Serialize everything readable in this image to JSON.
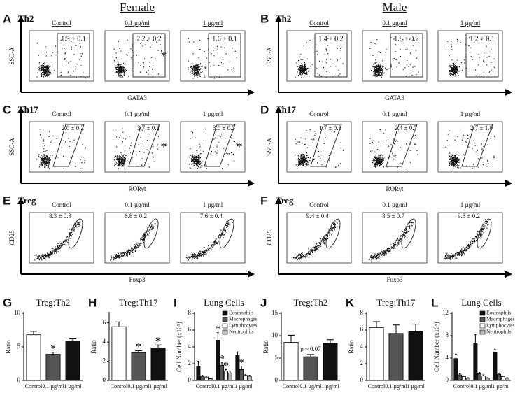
{
  "headings": {
    "female": "Female",
    "male": "Male"
  },
  "flow_panels": [
    {
      "letter": "A",
      "population": "Th2",
      "x_label": "GATA3",
      "y_label": "SSC-A",
      "plots": [
        {
          "condition": "Control",
          "gate": "1.5 ± 0.1"
        },
        {
          "condition": "0.1 µg/ml",
          "gate": "2.2 ± 0.2",
          "mark": "*"
        },
        {
          "condition": "1 µg/ml",
          "gate": "1.6 ± 0.1"
        }
      ]
    },
    {
      "letter": "B",
      "population": "Th2",
      "x_label": "GATA3",
      "y_label": "SSC-A",
      "plots": [
        {
          "condition": "Control",
          "gate": "1.4 ± 0.2"
        },
        {
          "condition": "0.1 µg/ml",
          "gate": "1.8 ± 0.2"
        },
        {
          "condition": "1 µg/ml",
          "gate": "1.2 ± 0.1"
        }
      ]
    },
    {
      "letter": "C",
      "population": "Th17",
      "x_label": "RORγt",
      "y_label": "SSC-A",
      "plots": [
        {
          "condition": "Control",
          "gate": "2.0 ± 0.2"
        },
        {
          "condition": "0.1 µg/ml",
          "gate": "3.7 ± 0.4",
          "mark": "*"
        },
        {
          "condition": "1 µg/ml",
          "gate": "3.0 ± 0.3",
          "mark": "*"
        }
      ]
    },
    {
      "letter": "D",
      "population": "Th17",
      "x_label": "RORγt",
      "y_label": "SSC-A",
      "plots": [
        {
          "condition": "Control",
          "gate": "1.7 ± 0.3"
        },
        {
          "condition": "0.1 µg/ml",
          "gate": "2.4 ± 0.7"
        },
        {
          "condition": "1 µg/ml",
          "gate": "2.7 ± 1.0"
        }
      ]
    },
    {
      "letter": "E",
      "population": "Treg",
      "x_label": "Foxp3",
      "y_label": "CD25",
      "plots": [
        {
          "condition": "Control",
          "gate": "8.3 ± 0.3"
        },
        {
          "condition": "0.1 µg/ml",
          "gate": "6.8 ± 0.2"
        },
        {
          "condition": "1 µg/ml",
          "gate": "7.6 ± 0.4"
        }
      ]
    },
    {
      "letter": "F",
      "population": "Treg",
      "x_label": "Foxp3",
      "y_label": "CD25",
      "plots": [
        {
          "condition": "Control",
          "gate": "9.4 ± 0.4"
        },
        {
          "condition": "0.1 µg/ml",
          "gate": "8.5 ± 0.7"
        },
        {
          "condition": "1 µg/ml",
          "gate": "9.3 ± 0.2"
        }
      ]
    }
  ],
  "chart_data": [
    {
      "type": "bar",
      "letter": "G",
      "title": "Treg:Th2",
      "y_label": "Ratio",
      "categories": [
        "Control",
        "0.1 µg/ml",
        "1 µg/ml"
      ],
      "values": [
        6.8,
        3.9,
        5.9
      ],
      "errors": [
        0.5,
        0.3,
        0.3
      ],
      "colors": [
        "#ffffff",
        "#555555",
        "#111111"
      ],
      "annotations": [
        null,
        "*",
        null
      ],
      "ylim": [
        0,
        10
      ],
      "yticks": [
        0,
        5,
        10
      ]
    },
    {
      "type": "bar",
      "letter": "H",
      "title": "Treg:Th17",
      "y_label": "Ratio",
      "categories": [
        "Control",
        "0.1 µg/ml",
        "1 µg/ml"
      ],
      "values": [
        5.6,
        2.9,
        3.4
      ],
      "errors": [
        0.5,
        0.2,
        0.3
      ],
      "colors": [
        "#ffffff",
        "#555555",
        "#111111"
      ],
      "annotations": [
        null,
        "*",
        "*"
      ],
      "ylim": [
        0,
        7
      ],
      "yticks": [
        0,
        2,
        4,
        6
      ]
    },
    {
      "type": "grouped_bar",
      "letter": "I",
      "title": "Lung Cells",
      "y_label": "Cell Number (x10⁵)",
      "categories": [
        "Control",
        "0.1 µg/ml",
        "1 µg/ml"
      ],
      "series": [
        {
          "name": "Eosinophils",
          "color": "#111111",
          "values": [
            1.7,
            4.8,
            3.0
          ],
          "errors": [
            0.6,
            0.9,
            0.4
          ],
          "annotations": [
            null,
            "*",
            null
          ]
        },
        {
          "name": "Macrophages",
          "color": "#555555",
          "values": [
            0.5,
            1.8,
            1.3
          ],
          "errors": [
            0.1,
            0.3,
            0.4
          ],
          "annotations": [
            null,
            "*",
            "*"
          ]
        },
        {
          "name": "Lymphocytes",
          "color": "#ffffff",
          "values": [
            0.4,
            1.1,
            0.6
          ],
          "errors": [
            0.1,
            0.2,
            0.1
          ],
          "annotations": [
            null,
            "*",
            null
          ]
        },
        {
          "name": "Neutrophils",
          "color": "#bbbbbb",
          "values": [
            0.2,
            0.9,
            0.5
          ],
          "errors": [
            0.05,
            0.2,
            0.1
          ],
          "annotations": [
            null,
            null,
            null
          ]
        }
      ],
      "ylim": [
        0,
        8
      ],
      "yticks": [
        0,
        2,
        4,
        6,
        8
      ]
    },
    {
      "type": "bar",
      "letter": "J",
      "title": "Treg:Th2",
      "y_label": "Ratio",
      "categories": [
        "Control",
        "0.1 µg/ml",
        "1 µg/ml"
      ],
      "values": [
        8.5,
        5.3,
        8.3
      ],
      "errors": [
        1.6,
        0.5,
        0.8
      ],
      "colors": [
        "#ffffff",
        "#555555",
        "#111111"
      ],
      "annotations": [
        null,
        "p ~ 0.07",
        null
      ],
      "ylim": [
        0,
        15
      ],
      "yticks": [
        0,
        5,
        10,
        15
      ]
    },
    {
      "type": "bar",
      "letter": "K",
      "title": "Treg:Th17",
      "y_label": "Ratio",
      "categories": [
        "Control",
        "0.1 µg/ml",
        "1 µg/ml"
      ],
      "values": [
        6.3,
        5.6,
        5.8
      ],
      "errors": [
        0.7,
        1.0,
        0.9
      ],
      "colors": [
        "#ffffff",
        "#555555",
        "#111111"
      ],
      "annotations": [
        null,
        null,
        null
      ],
      "ylim": [
        0,
        8
      ],
      "yticks": [
        0,
        2,
        4,
        6,
        8
      ]
    },
    {
      "type": "grouped_bar",
      "letter": "L",
      "title": "Lung Cells",
      "y_label": "Cell Number (x10⁵)",
      "categories": [
        "Control",
        "0.1 µg/ml",
        "1 µg/ml"
      ],
      "series": [
        {
          "name": "Eosinophils",
          "color": "#111111",
          "values": [
            3.9,
            6.7,
            5.0
          ],
          "errors": [
            0.8,
            1.5,
            0.6
          ],
          "annotations": [
            null,
            null,
            null
          ]
        },
        {
          "name": "Macrophages",
          "color": "#555555",
          "values": [
            1.0,
            1.2,
            1.1
          ],
          "errors": [
            0.2,
            0.2,
            0.2
          ],
          "annotations": [
            null,
            null,
            null
          ]
        },
        {
          "name": "Lymphocytes",
          "color": "#ffffff",
          "values": [
            0.7,
            0.8,
            0.7
          ],
          "errors": [
            0.1,
            0.2,
            0.1
          ],
          "annotations": [
            null,
            null,
            null
          ]
        },
        {
          "name": "Neutrophils",
          "color": "#bbbbbb",
          "values": [
            0.4,
            0.4,
            0.4
          ],
          "errors": [
            0.1,
            0.1,
            0.1
          ],
          "annotations": [
            null,
            null,
            null
          ]
        }
      ],
      "ylim": [
        0,
        12
      ],
      "yticks": [
        0,
        4,
        8,
        12
      ]
    }
  ]
}
